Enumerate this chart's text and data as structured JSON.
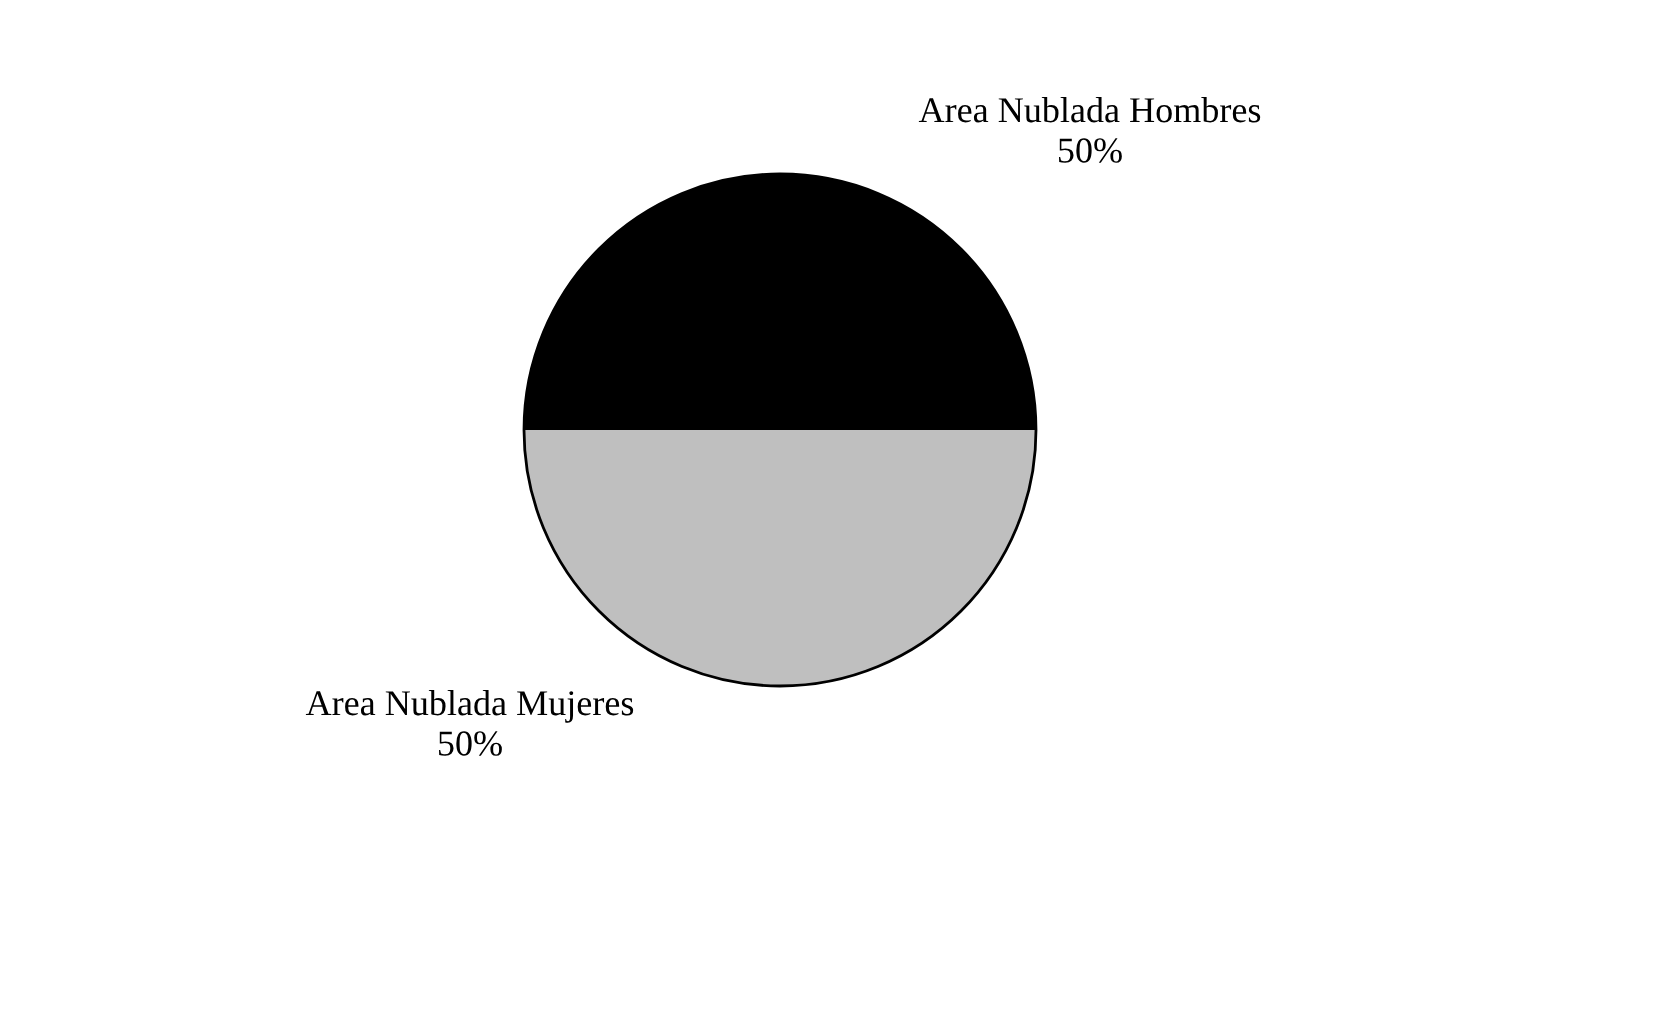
{
  "chart_data": {
    "type": "pie",
    "categories": [
      "Area Nublada Hombres",
      "Area Nublada Mujeres"
    ],
    "values": [
      50,
      50
    ],
    "value_labels": [
      "50%",
      "50%"
    ],
    "colors": [
      "#000000",
      "#bfbfbf"
    ]
  }
}
